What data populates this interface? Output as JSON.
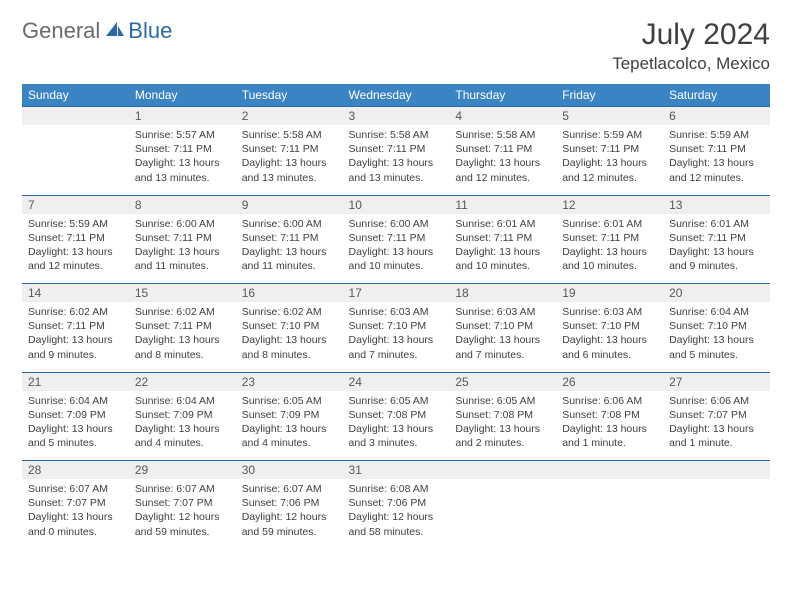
{
  "brand": {
    "part1": "General",
    "part2": "Blue"
  },
  "title": "July 2024",
  "location": "Tepetlacolco, Mexico",
  "header_color": "#3b84c4",
  "accent_line_color": "#2b6aa8",
  "daynum_bg": "#efefef",
  "weekdays": [
    "Sunday",
    "Monday",
    "Tuesday",
    "Wednesday",
    "Thursday",
    "Friday",
    "Saturday"
  ],
  "weeks": [
    {
      "nums": [
        "",
        "1",
        "2",
        "3",
        "4",
        "5",
        "6"
      ],
      "cells": [
        "",
        "Sunrise: 5:57 AM\nSunset: 7:11 PM\nDaylight: 13 hours and 13 minutes.",
        "Sunrise: 5:58 AM\nSunset: 7:11 PM\nDaylight: 13 hours and 13 minutes.",
        "Sunrise: 5:58 AM\nSunset: 7:11 PM\nDaylight: 13 hours and 13 minutes.",
        "Sunrise: 5:58 AM\nSunset: 7:11 PM\nDaylight: 13 hours and 12 minutes.",
        "Sunrise: 5:59 AM\nSunset: 7:11 PM\nDaylight: 13 hours and 12 minutes.",
        "Sunrise: 5:59 AM\nSunset: 7:11 PM\nDaylight: 13 hours and 12 minutes."
      ]
    },
    {
      "nums": [
        "7",
        "8",
        "9",
        "10",
        "11",
        "12",
        "13"
      ],
      "cells": [
        "Sunrise: 5:59 AM\nSunset: 7:11 PM\nDaylight: 13 hours and 12 minutes.",
        "Sunrise: 6:00 AM\nSunset: 7:11 PM\nDaylight: 13 hours and 11 minutes.",
        "Sunrise: 6:00 AM\nSunset: 7:11 PM\nDaylight: 13 hours and 11 minutes.",
        "Sunrise: 6:00 AM\nSunset: 7:11 PM\nDaylight: 13 hours and 10 minutes.",
        "Sunrise: 6:01 AM\nSunset: 7:11 PM\nDaylight: 13 hours and 10 minutes.",
        "Sunrise: 6:01 AM\nSunset: 7:11 PM\nDaylight: 13 hours and 10 minutes.",
        "Sunrise: 6:01 AM\nSunset: 7:11 PM\nDaylight: 13 hours and 9 minutes."
      ]
    },
    {
      "nums": [
        "14",
        "15",
        "16",
        "17",
        "18",
        "19",
        "20"
      ],
      "cells": [
        "Sunrise: 6:02 AM\nSunset: 7:11 PM\nDaylight: 13 hours and 9 minutes.",
        "Sunrise: 6:02 AM\nSunset: 7:11 PM\nDaylight: 13 hours and 8 minutes.",
        "Sunrise: 6:02 AM\nSunset: 7:10 PM\nDaylight: 13 hours and 8 minutes.",
        "Sunrise: 6:03 AM\nSunset: 7:10 PM\nDaylight: 13 hours and 7 minutes.",
        "Sunrise: 6:03 AM\nSunset: 7:10 PM\nDaylight: 13 hours and 7 minutes.",
        "Sunrise: 6:03 AM\nSunset: 7:10 PM\nDaylight: 13 hours and 6 minutes.",
        "Sunrise: 6:04 AM\nSunset: 7:10 PM\nDaylight: 13 hours and 5 minutes."
      ]
    },
    {
      "nums": [
        "21",
        "22",
        "23",
        "24",
        "25",
        "26",
        "27"
      ],
      "cells": [
        "Sunrise: 6:04 AM\nSunset: 7:09 PM\nDaylight: 13 hours and 5 minutes.",
        "Sunrise: 6:04 AM\nSunset: 7:09 PM\nDaylight: 13 hours and 4 minutes.",
        "Sunrise: 6:05 AM\nSunset: 7:09 PM\nDaylight: 13 hours and 4 minutes.",
        "Sunrise: 6:05 AM\nSunset: 7:08 PM\nDaylight: 13 hours and 3 minutes.",
        "Sunrise: 6:05 AM\nSunset: 7:08 PM\nDaylight: 13 hours and 2 minutes.",
        "Sunrise: 6:06 AM\nSunset: 7:08 PM\nDaylight: 13 hours and 1 minute.",
        "Sunrise: 6:06 AM\nSunset: 7:07 PM\nDaylight: 13 hours and 1 minute."
      ]
    },
    {
      "nums": [
        "28",
        "29",
        "30",
        "31",
        "",
        "",
        ""
      ],
      "cells": [
        "Sunrise: 6:07 AM\nSunset: 7:07 PM\nDaylight: 13 hours and 0 minutes.",
        "Sunrise: 6:07 AM\nSunset: 7:07 PM\nDaylight: 12 hours and 59 minutes.",
        "Sunrise: 6:07 AM\nSunset: 7:06 PM\nDaylight: 12 hours and 59 minutes.",
        "Sunrise: 6:08 AM\nSunset: 7:06 PM\nDaylight: 12 hours and 58 minutes.",
        "",
        "",
        ""
      ]
    }
  ]
}
